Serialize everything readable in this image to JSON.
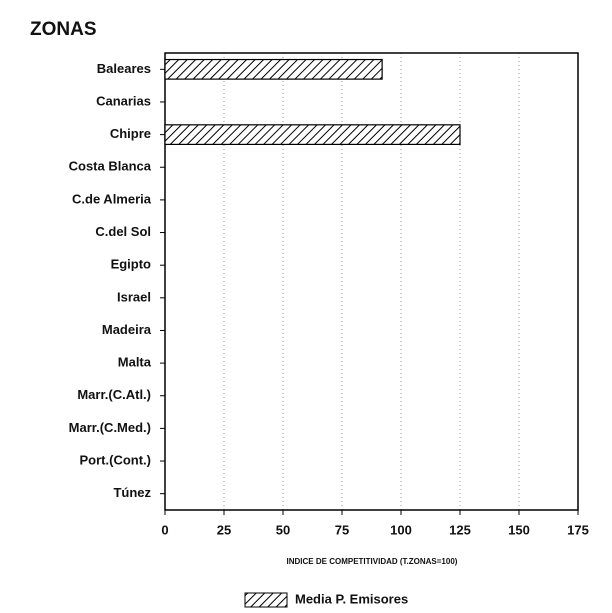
{
  "chart_data": {
    "type": "barh",
    "title": "ZONAS",
    "categories": [
      "Baleares",
      "Canarias",
      "Chipre",
      "Costa Blanca",
      "C.de Almeria",
      "C.del Sol",
      "Egipto",
      "Israel",
      "Madeira",
      "Malta",
      "Marr.(C.Atl.)",
      "Marr.(C.Med.)",
      "Port.(Cont.)",
      "Túnez"
    ],
    "series": [
      {
        "name": "Media P. Emisores",
        "color": "#000000",
        "values": [
          92,
          null,
          125,
          null,
          null,
          null,
          null,
          null,
          null,
          null,
          null,
          null,
          null,
          null
        ]
      }
    ],
    "xlabel": "INDICE DE COMPETITIVIDAD (T.ZONAS=100)",
    "xlim": [
      0,
      175
    ],
    "xticks": [
      0,
      25,
      50,
      75,
      100,
      125,
      150,
      175
    ],
    "grid": true
  }
}
